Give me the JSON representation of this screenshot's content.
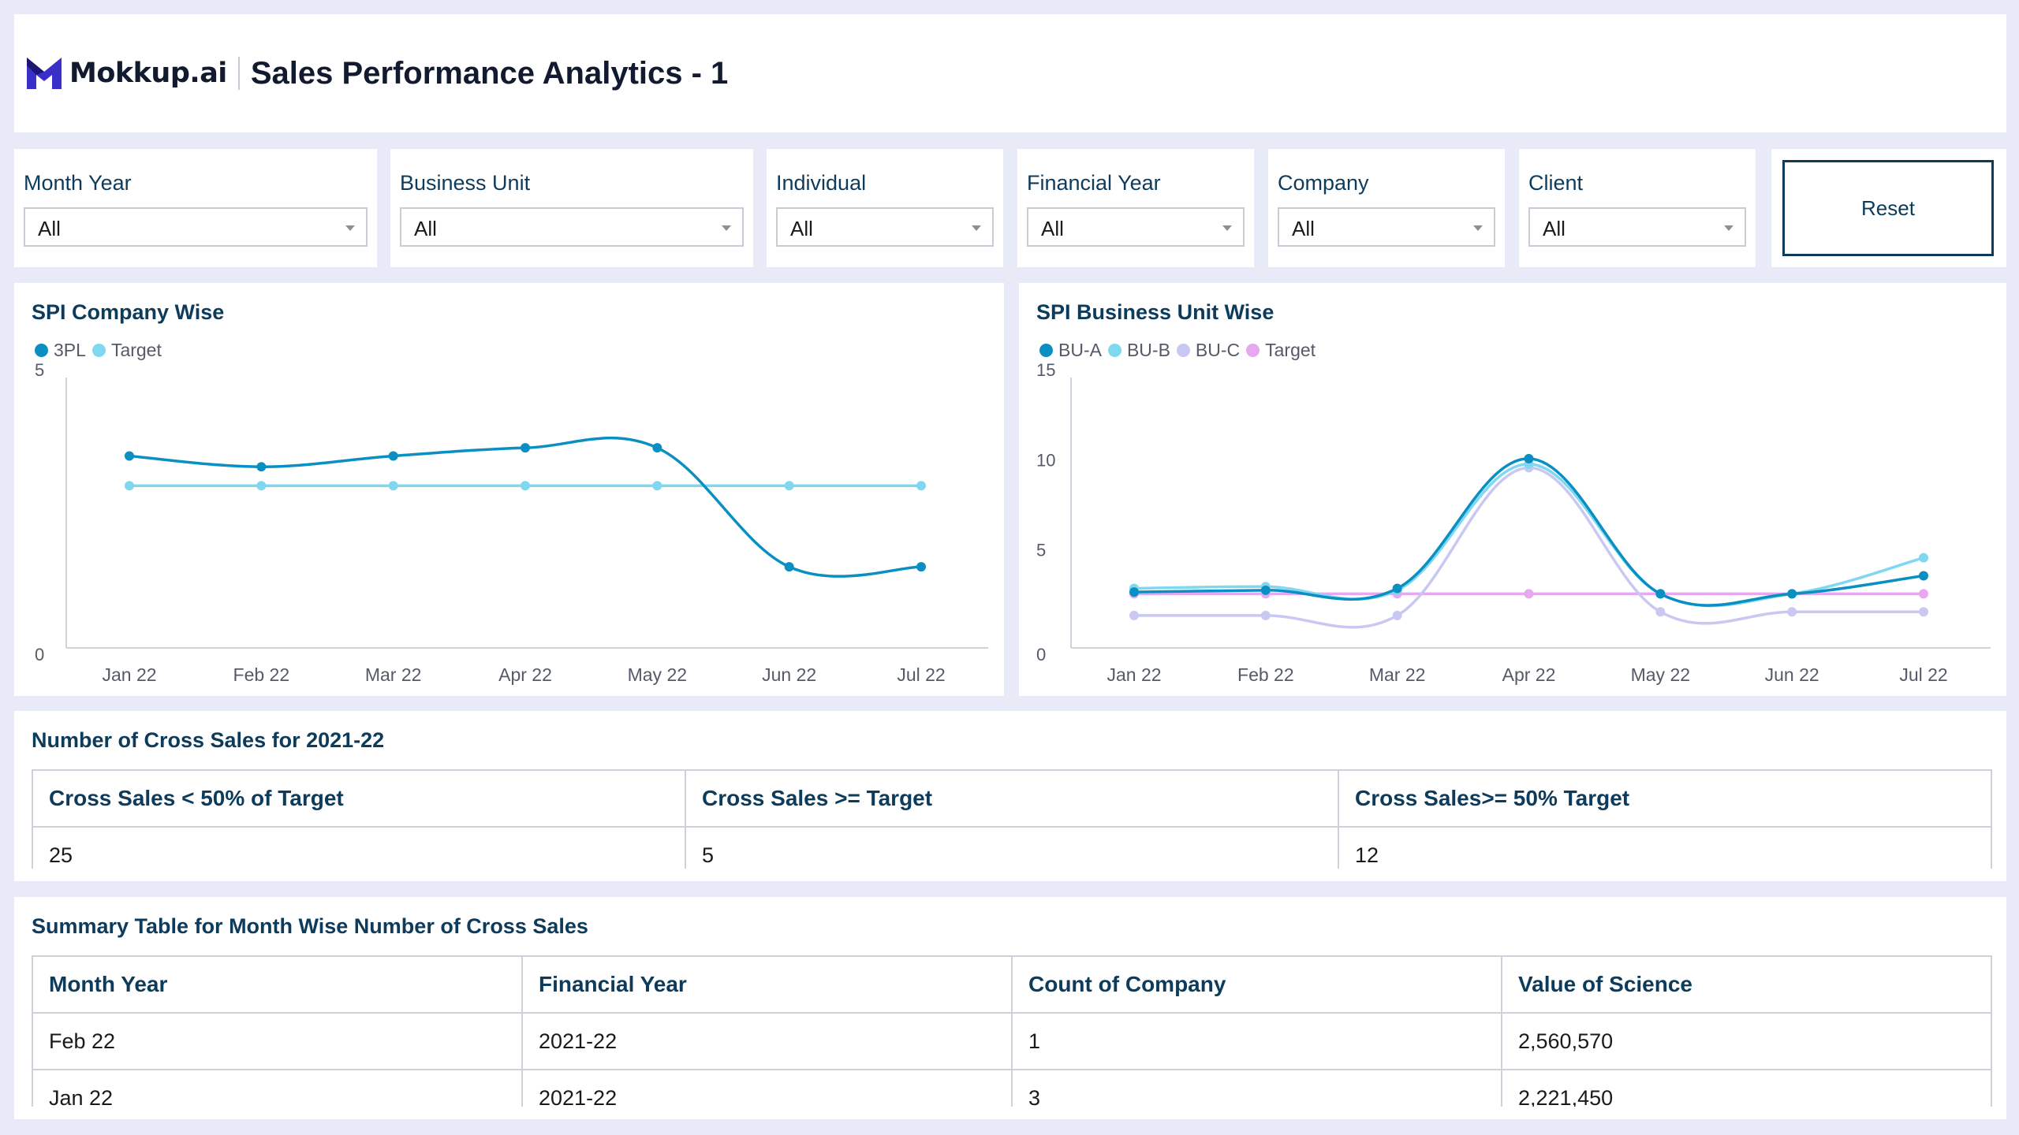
{
  "header": {
    "logo_text": "Mokkup.ai",
    "title": "Sales Performance Analytics - 1"
  },
  "filters": [
    {
      "label": "Month Year",
      "value": "All"
    },
    {
      "label": "Business Unit",
      "value": "All"
    },
    {
      "label": "Individual",
      "value": "All"
    },
    {
      "label": "Financial Year",
      "value": "All"
    },
    {
      "label": "Company",
      "value": "All"
    },
    {
      "label": "Client",
      "value": "All"
    }
  ],
  "reset_label": "Reset",
  "colors": {
    "accent": "#0d3b5c",
    "series_dark": "#0a8fc2",
    "series_light": "#7fd8f0",
    "series_lavender": "#c8c8f2",
    "series_pink": "#e8a8f0"
  },
  "chart_data": [
    {
      "type": "line",
      "title": "SPI Company Wise",
      "categories": [
        "Jan 22",
        "Feb 22",
        "Mar 22",
        "Apr 22",
        "May 22",
        "Jun 22",
        "Jul 22"
      ],
      "series": [
        {
          "name": "3PL",
          "values": [
            3.55,
            3.35,
            3.55,
            3.7,
            3.7,
            1.5,
            1.5
          ]
        },
        {
          "name": "Target",
          "values": [
            3.0,
            3.0,
            3.0,
            3.0,
            3.0,
            3.0,
            3.0
          ]
        }
      ],
      "yticks": [
        "0",
        "5"
      ],
      "ylim": [
        0,
        5
      ],
      "legend": "top-left",
      "grid": false
    },
    {
      "type": "line",
      "title": "SPI Business Unit Wise",
      "categories": [
        "Jan 22",
        "Feb 22",
        "Mar 22",
        "Apr 22",
        "May 22",
        "Jun 22",
        "Jul 22"
      ],
      "series": [
        {
          "name": "BU-A",
          "values": [
            3.1,
            3.2,
            3.3,
            10.5,
            3.0,
            3.0,
            4.0
          ]
        },
        {
          "name": "BU-B",
          "values": [
            3.3,
            3.4,
            3.2,
            10.2,
            3.0,
            3.0,
            5.0
          ]
        },
        {
          "name": "BU-C",
          "values": [
            1.8,
            1.8,
            1.8,
            10.0,
            2.0,
            2.0,
            2.0
          ]
        },
        {
          "name": "Target",
          "values": [
            3.0,
            3.0,
            3.0,
            3.0,
            3.0,
            3.0,
            3.0
          ]
        }
      ],
      "yticks": [
        "0",
        "5",
        "10",
        "15"
      ],
      "ylim": [
        0,
        15
      ],
      "legend": "top-left",
      "grid": false
    }
  ],
  "cross_sales": {
    "title": "Number of Cross Sales for 2021-22",
    "headers": [
      "Cross Sales < 50% of Target",
      "Cross Sales >= Target",
      "Cross Sales>= 50% Target"
    ],
    "values": [
      "25",
      "5",
      "12"
    ]
  },
  "summary": {
    "title": "Summary Table for Month Wise Number of Cross Sales",
    "headers": [
      "Month Year",
      "Financial Year",
      "Count of Company",
      "Value of Science"
    ],
    "rows": [
      [
        "Feb 22",
        "2021-22",
        "1",
        "2,560,570"
      ],
      [
        "Jan 22",
        "2021-22",
        "3",
        "2,221,450"
      ]
    ]
  }
}
